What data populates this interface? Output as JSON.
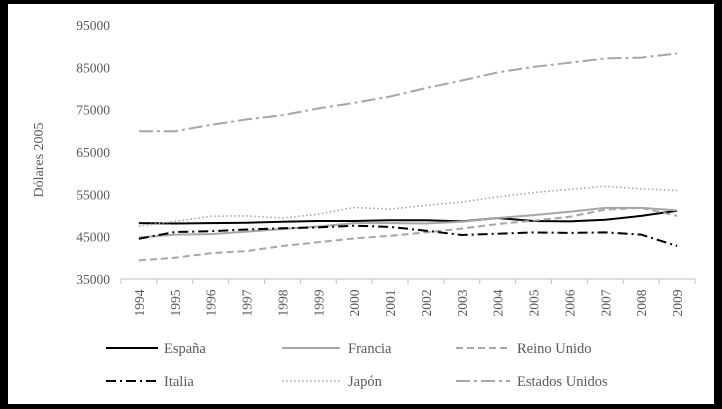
{
  "chart_data": {
    "type": "line",
    "title": "",
    "xlabel": "",
    "ylabel": "Dólares 2005",
    "ylim": [
      35000,
      95000
    ],
    "yticks": [
      35000,
      45000,
      55000,
      65000,
      75000,
      85000,
      95000
    ],
    "ytick_labels": [
      "35000",
      "45000",
      "55000",
      "65000",
      "75000",
      "85000",
      "95000"
    ],
    "grid": false,
    "legend": "bottom",
    "categories": [
      "1994",
      "1995",
      "1996",
      "1997",
      "1998",
      "1999",
      "2000",
      "2001",
      "2002",
      "2003",
      "2004",
      "2005",
      "2006",
      "2007",
      "2008",
      "2009"
    ],
    "series": [
      {
        "name": "España",
        "color": "#000000",
        "dash": "solid",
        "values": [
          48200,
          48100,
          48200,
          48300,
          48500,
          48700,
          48700,
          48900,
          48900,
          48600,
          49400,
          48700,
          48600,
          49000,
          49900,
          51100
        ]
      },
      {
        "name": "Francia",
        "color": "#a6a6a6",
        "dash": "solid",
        "values": [
          44800,
          45500,
          45600,
          46200,
          46800,
          47400,
          48200,
          48200,
          48100,
          48500,
          49400,
          50100,
          50900,
          51800,
          51800,
          51200
        ]
      },
      {
        "name": "Reino Unido",
        "color": "#a6a6a6",
        "dash": "dash",
        "values": [
          39400,
          40000,
          41100,
          41600,
          42800,
          43700,
          44600,
          45200,
          46000,
          46900,
          48000,
          48800,
          49700,
          51400,
          51800,
          49900
        ]
      },
      {
        "name": "Italia",
        "color": "#000000",
        "dash": "dashdot",
        "values": [
          44500,
          46100,
          46300,
          46700,
          47000,
          47200,
          47600,
          47300,
          46400,
          45400,
          45700,
          46000,
          45900,
          46000,
          45500,
          42800
        ]
      },
      {
        "name": "Japón",
        "color": "#a6a6a6",
        "dash": "dot",
        "values": [
          47500,
          48600,
          49800,
          49900,
          49400,
          50300,
          51900,
          51500,
          52400,
          53200,
          54400,
          55400,
          56200,
          56900,
          56300,
          55900
        ]
      },
      {
        "name": "Estados Unidos",
        "color": "#a6a6a6",
        "dash": "longdashdot",
        "values": [
          69900,
          69900,
          71400,
          72700,
          73700,
          75300,
          76600,
          78100,
          80100,
          81900,
          83800,
          85100,
          86100,
          87100,
          87300,
          88300
        ]
      }
    ]
  }
}
